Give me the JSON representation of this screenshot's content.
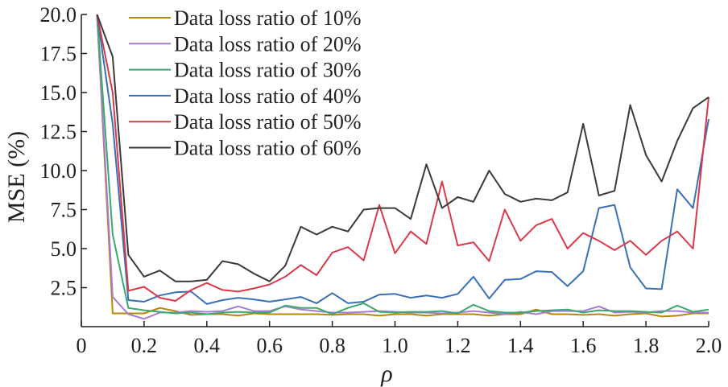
{
  "chart_data": {
    "type": "line",
    "xlabel": "ρ",
    "ylabel": "MSE (%)",
    "xlim": [
      0,
      2.0
    ],
    "ylim": [
      0,
      20.0
    ],
    "xticks": [
      "0",
      "0.2",
      "0.4",
      "0.6",
      "0.8",
      "1.0",
      "1.2",
      "1.4",
      "1.6",
      "1.8",
      "2.0"
    ],
    "yticks": [
      "2.5",
      "5.0",
      "7.5",
      "10.0",
      "12.5",
      "15.0",
      "17.5",
      "20.0"
    ],
    "legend_position": "top-left",
    "x": [
      0.05,
      0.1,
      0.15,
      0.2,
      0.25,
      0.3,
      0.35,
      0.4,
      0.45,
      0.5,
      0.55,
      0.6,
      0.65,
      0.7,
      0.75,
      0.8,
      0.85,
      0.9,
      0.95,
      1.0,
      1.05,
      1.1,
      1.15,
      1.2,
      1.25,
      1.3,
      1.35,
      1.4,
      1.45,
      1.5,
      1.55,
      1.6,
      1.65,
      1.7,
      1.75,
      1.8,
      1.85,
      1.9,
      1.95,
      2.0
    ],
    "series": [
      {
        "name": "Data loss ratio of 10%",
        "color": "#b8860b",
        "values": [
          20.0,
          0.85,
          0.85,
          0.85,
          1.2,
          1.0,
          0.75,
          0.8,
          0.8,
          0.7,
          0.85,
          0.8,
          0.8,
          0.8,
          0.8,
          0.75,
          0.8,
          0.8,
          0.7,
          0.8,
          0.8,
          0.7,
          0.8,
          0.8,
          0.8,
          0.7,
          0.8,
          0.8,
          1.1,
          0.8,
          0.8,
          0.75,
          0.8,
          0.7,
          0.8,
          0.85,
          0.65,
          0.7,
          0.85,
          0.85
        ]
      },
      {
        "name": "Data loss ratio of 20%",
        "color": "#a87bd0",
        "values": [
          20.0,
          1.9,
          0.8,
          0.5,
          0.9,
          0.9,
          1.0,
          0.95,
          1.0,
          1.3,
          1.0,
          1.0,
          1.3,
          1.1,
          1.0,
          0.9,
          0.9,
          0.95,
          1.0,
          0.95,
          0.9,
          0.9,
          0.85,
          0.9,
          1.0,
          0.9,
          0.8,
          0.95,
          0.8,
          1.0,
          1.0,
          1.0,
          1.3,
          0.9,
          0.95,
          0.9,
          1.0,
          1.0,
          0.9,
          0.9
        ]
      },
      {
        "name": "Data loss ratio of 30%",
        "color": "#3aa86f",
        "values": [
          20.0,
          5.9,
          1.2,
          1.05,
          0.95,
          0.85,
          0.9,
          0.8,
          0.9,
          0.95,
          0.9,
          0.9,
          1.35,
          1.2,
          1.2,
          0.8,
          1.2,
          1.5,
          0.95,
          0.9,
          0.95,
          0.95,
          1.0,
          0.85,
          1.4,
          1.0,
          0.9,
          0.9,
          1.0,
          1.05,
          1.1,
          0.9,
          1.05,
          1.0,
          1.0,
          0.95,
          0.9,
          1.35,
          0.95,
          1.1
        ]
      },
      {
        "name": "Data loss ratio of 40%",
        "color": "#3b6fb6",
        "values": [
          20.0,
          13.0,
          1.7,
          1.6,
          2.0,
          2.2,
          2.25,
          1.45,
          1.7,
          1.85,
          1.75,
          1.6,
          1.75,
          1.9,
          1.5,
          2.15,
          1.5,
          1.6,
          2.05,
          2.1,
          1.85,
          2.0,
          1.85,
          2.1,
          3.2,
          1.8,
          3.0,
          3.05,
          3.55,
          3.5,
          2.6,
          3.55,
          7.6,
          7.8,
          3.8,
          2.45,
          2.4,
          8.8,
          7.6,
          13.3
        ]
      },
      {
        "name": "Data loss ratio of 50%",
        "color": "#d93a4a",
        "values": [
          20.0,
          15.0,
          2.3,
          2.55,
          1.85,
          1.65,
          2.35,
          2.8,
          2.35,
          2.25,
          2.45,
          2.7,
          3.2,
          3.95,
          3.3,
          4.75,
          5.1,
          4.25,
          7.8,
          4.7,
          6.1,
          5.3,
          9.3,
          5.2,
          5.4,
          4.2,
          7.5,
          5.5,
          6.5,
          6.9,
          5.0,
          6.0,
          5.5,
          4.9,
          5.5,
          4.6,
          5.5,
          6.1,
          5.0,
          14.7
        ]
      },
      {
        "name": "Data loss ratio of 60%",
        "color": "#3a3a3a",
        "values": [
          20.0,
          17.3,
          4.6,
          3.2,
          3.6,
          2.9,
          2.9,
          3.0,
          4.2,
          4.0,
          3.4,
          2.9,
          3.9,
          6.4,
          5.9,
          6.4,
          6.1,
          7.5,
          7.6,
          7.6,
          6.9,
          10.4,
          7.6,
          8.3,
          8.0,
          10.0,
          8.5,
          8.0,
          8.2,
          8.1,
          8.6,
          13.0,
          8.4,
          8.7,
          14.2,
          11.0,
          9.3,
          11.9,
          14.0,
          14.7
        ]
      }
    ]
  }
}
